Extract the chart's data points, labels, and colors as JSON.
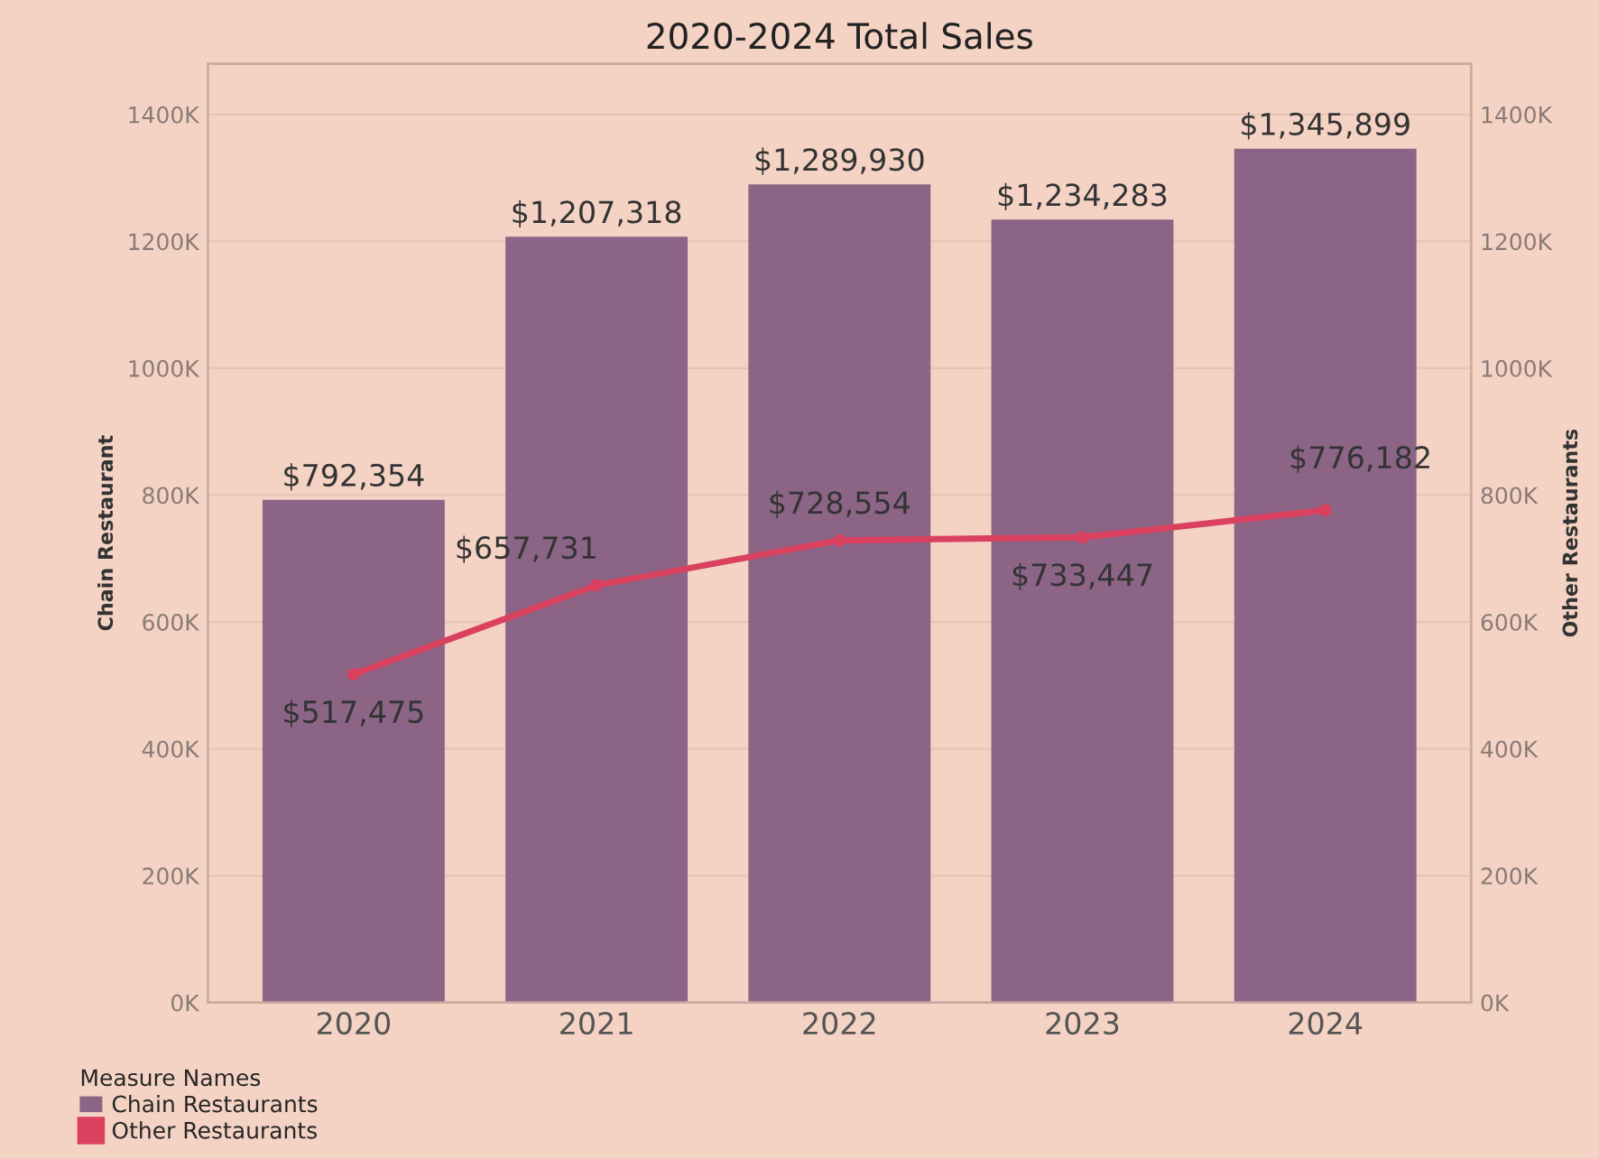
{
  "chart_data": {
    "type": "bar",
    "title": "2020-2024 Total Sales",
    "ylabel": "Chain Restaurant",
    "y2label": "Other Restaurants",
    "legend_title": "Measure Names",
    "categories": [
      "2020",
      "2021",
      "2022",
      "2023",
      "2024"
    ],
    "series": [
      {
        "name": "Chain Restaurants",
        "color": "#8c6486",
        "values": [
          792354,
          1207318,
          1289930,
          1234283,
          1345899
        ],
        "value_labels": [
          "$792,354",
          "$1,207,318",
          "$1,289,930",
          "$1,234,283",
          "$1,345,899"
        ]
      },
      {
        "name": "Other Restaurants",
        "type": "line",
        "axis": "y2",
        "color": "#d9415f",
        "marker": "circle",
        "values": [
          517475,
          657731,
          728554,
          733447,
          776182
        ],
        "value_labels": [
          "$517,475",
          "$657,731",
          "$728,554",
          "$733,447",
          "$776,182"
        ]
      }
    ],
    "ylim": [
      0,
      1480000
    ],
    "y2lim": [
      0,
      1480000
    ],
    "yticks": [
      {
        "value": 0,
        "label": "0K"
      },
      {
        "value": 200000,
        "label": "200K"
      },
      {
        "value": 400000,
        "label": "400K"
      },
      {
        "value": 600000,
        "label": "600K"
      },
      {
        "value": 800000,
        "label": "800K"
      },
      {
        "value": 1000000,
        "label": "1000K"
      },
      {
        "value": 1200000,
        "label": "1200K"
      },
      {
        "value": 1400000,
        "label": "1400K"
      }
    ],
    "y2ticks": [
      {
        "value": 0,
        "label": "0K"
      },
      {
        "value": 200000,
        "label": "200K"
      },
      {
        "value": 400000,
        "label": "400K"
      },
      {
        "value": 600000,
        "label": "600K"
      },
      {
        "value": 800000,
        "label": "800K"
      },
      {
        "value": 1000000,
        "label": "1000K"
      },
      {
        "value": 1200000,
        "label": "1200K"
      },
      {
        "value": 1400000,
        "label": "1400K"
      }
    ],
    "grid": "y",
    "legend": "bottom left"
  }
}
